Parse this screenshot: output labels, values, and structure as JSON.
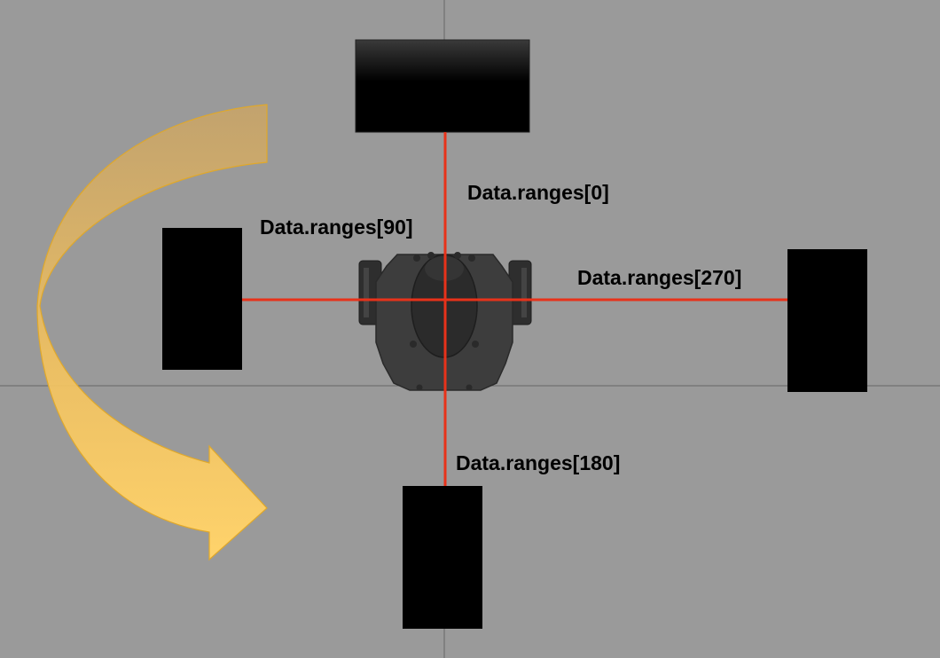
{
  "labels": {
    "front": "Data.ranges[0]",
    "left": "Data.ranges[90]",
    "right": "Data.ranges[270]",
    "back": "Data.ranges[180]"
  },
  "colors": {
    "background": "#9a9a9a",
    "grid_line": "#666666",
    "range_ray": "#e8321a",
    "obstacle": "#000000",
    "robot_body": "#3b3b3b",
    "rotation_arrow": "#ffd36b"
  },
  "icons": {
    "robot": "robot-top-view-icon",
    "rotation_arrow": "curved-arrow-icon"
  }
}
